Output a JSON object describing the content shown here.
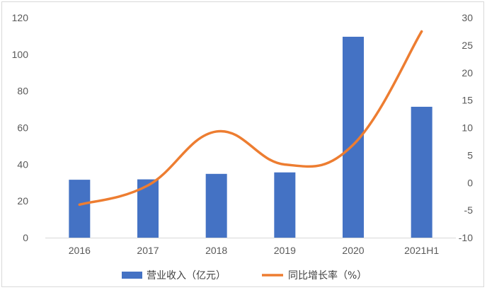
{
  "chart_data": {
    "type": "bar",
    "categories": [
      "2016",
      "2017",
      "2018",
      "2019",
      "2020",
      "2021H1"
    ],
    "series": [
      {
        "name": "营业收入（亿元）",
        "type": "bar",
        "axis": "left",
        "color": "#4472C4",
        "values": [
          31.6,
          31.8,
          34.8,
          35.6,
          109.6,
          71.4
        ]
      },
      {
        "name": "同比增长率（%）",
        "type": "line",
        "axis": "right",
        "color": "#ED7D31",
        "smooth": true,
        "values": [
          -4.0,
          -0.5,
          9.3,
          3.3,
          6.9,
          27.5
        ]
      }
    ],
    "y_left": {
      "lim": [
        0,
        120
      ],
      "ticks": [
        "0",
        "20",
        "40",
        "60",
        "80",
        "100",
        "120"
      ]
    },
    "y_right": {
      "lim": [
        -10,
        30
      ],
      "ticks": [
        "-10",
        "-5",
        "0",
        "5",
        "10",
        "15",
        "20",
        "25",
        "30"
      ]
    },
    "grid": false,
    "legend": "bottom"
  }
}
